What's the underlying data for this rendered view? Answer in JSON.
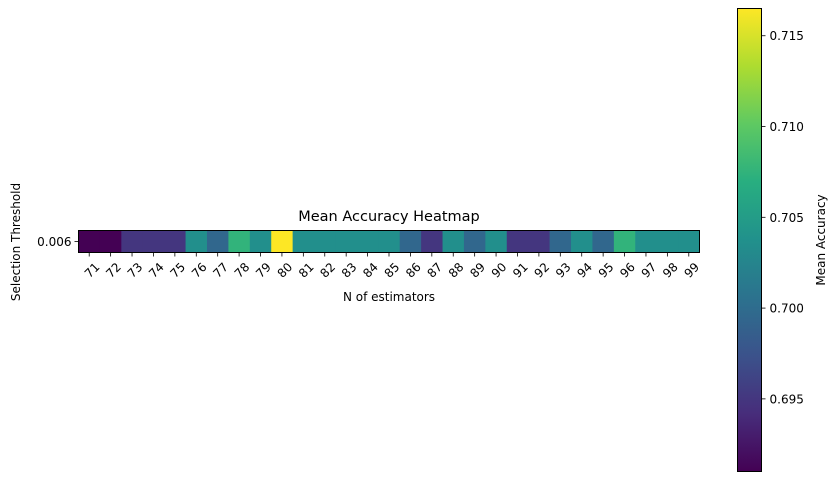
{
  "chart_data": {
    "type": "heatmap",
    "title": "Mean Accuracy Heatmap",
    "xlabel": "N of estimators",
    "ylabel": "Selection Threshold",
    "x": [
      "71",
      "72",
      "73",
      "74",
      "75",
      "76",
      "77",
      "78",
      "79",
      "80",
      "81",
      "82",
      "83",
      "84",
      "85",
      "86",
      "87",
      "88",
      "89",
      "90",
      "91",
      "92",
      "93",
      "94",
      "95",
      "96",
      "97",
      "98",
      "99"
    ],
    "y": [
      "0.006"
    ],
    "values": [
      [
        0.691,
        0.691,
        0.695,
        0.695,
        0.695,
        0.7035,
        0.6995,
        0.7075,
        0.7035,
        0.7165,
        0.7035,
        0.7035,
        0.7035,
        0.7035,
        0.7035,
        0.6995,
        0.695,
        0.7035,
        0.6995,
        0.7035,
        0.695,
        0.695,
        0.6995,
        0.7035,
        0.6995,
        0.7075,
        0.7035,
        0.7035,
        0.7035
      ]
    ],
    "colorbar": {
      "label": "Mean Accuracy",
      "range": [
        0.691,
        0.7165
      ],
      "ticks": [
        "0.695",
        "0.700",
        "0.705",
        "0.710",
        "0.715"
      ],
      "colormap": "viridis"
    }
  }
}
